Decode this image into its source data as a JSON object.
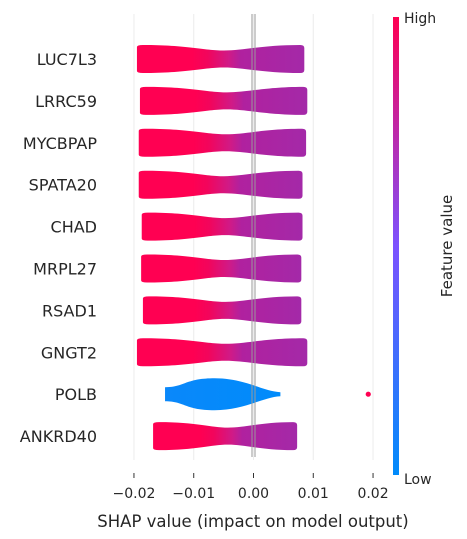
{
  "chart_data": {
    "type": "violin",
    "features": [
      "LUC7L3",
      "LRRC59",
      "MYCBPAP",
      "SPATA20",
      "CHAD",
      "MRPL27",
      "RSAD1",
      "GNGT2",
      "POLB",
      "ANKRD40"
    ],
    "xlabel": "SHAP value (impact on model output)",
    "xlim": [
      -0.022,
      0.022
    ],
    "xticks": [
      -0.02,
      -0.01,
      0.0,
      0.01,
      0.02
    ],
    "xtick_labels": [
      "−0.02",
      "−0.01",
      "0.00",
      "0.01",
      "0.02"
    ],
    "grid": "vertical",
    "zero_line": 0.0,
    "violins": [
      {
        "feature": "LUC7L3",
        "min": -0.0195,
        "max": 0.0085,
        "outliers": []
      },
      {
        "feature": "LRRC59",
        "min": -0.019,
        "max": 0.009,
        "outliers": []
      },
      {
        "feature": "MYCBPAP",
        "min": -0.0192,
        "max": 0.0088,
        "outliers": []
      },
      {
        "feature": "SPATA20",
        "min": -0.0192,
        "max": 0.0082,
        "outliers": []
      },
      {
        "feature": "CHAD",
        "min": -0.0187,
        "max": 0.0082,
        "outliers": []
      },
      {
        "feature": "MRPL27",
        "min": -0.0188,
        "max": 0.008,
        "outliers": []
      },
      {
        "feature": "RSAD1",
        "min": -0.0185,
        "max": 0.008,
        "outliers": []
      },
      {
        "feature": "GNGT2",
        "min": -0.0195,
        "max": 0.009,
        "outliers": []
      },
      {
        "feature": "POLB",
        "min": -0.0148,
        "max": 0.0045,
        "outliers": [
          0.0192
        ]
      },
      {
        "feature": "ANKRD40",
        "min": -0.0168,
        "max": 0.0073,
        "outliers": []
      }
    ],
    "colorbar": {
      "title": "Feature value",
      "high_label": "High",
      "low_label": "Low",
      "high_color": "#ff0052",
      "mid_color": "#7c52ff",
      "low_color": "#008bfb"
    }
  }
}
